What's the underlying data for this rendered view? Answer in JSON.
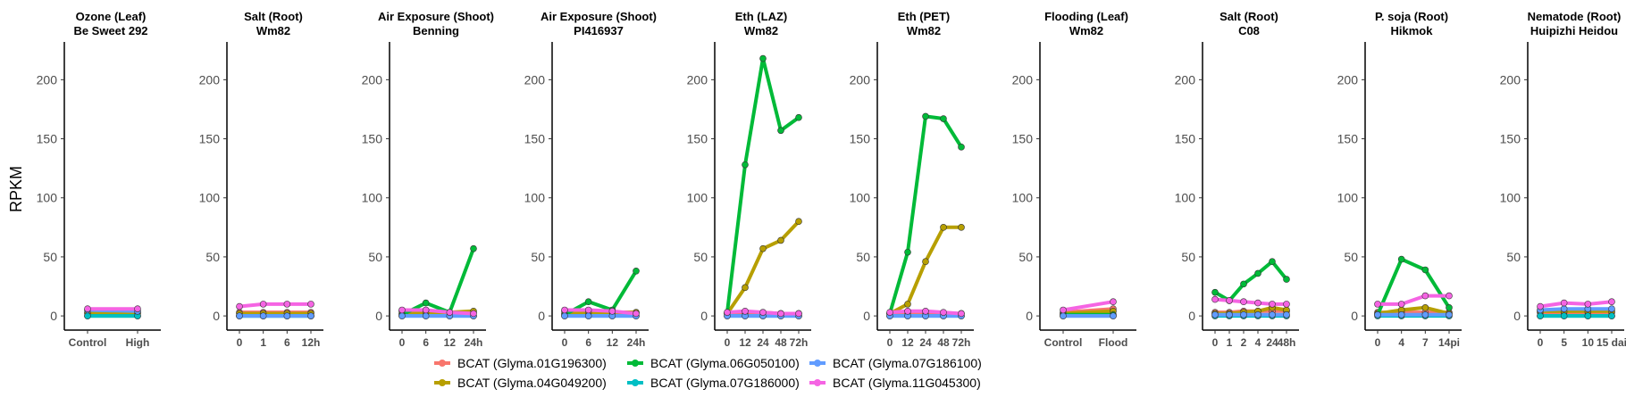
{
  "ylabel": "RPKM",
  "y_ticks": [
    "0",
    "50",
    "100",
    "150",
    "200"
  ],
  "colors": {
    "Glyma.01G196300": "#F8766D",
    "Glyma.04G049200": "#B79F00",
    "Glyma.06G050100": "#00BA38",
    "Glyma.07G186000": "#00BFC4",
    "Glyma.07G186100": "#619CFF",
    "Glyma.11G045300": "#F564E3"
  },
  "legend": [
    {
      "label": "BCAT (Glyma.01G196300)",
      "gene": "Glyma.01G196300"
    },
    {
      "label": "BCAT (Glyma.04G049200)",
      "gene": "Glyma.04G049200"
    },
    {
      "label": "BCAT (Glyma.06G050100)",
      "gene": "Glyma.06G050100"
    },
    {
      "label": "BCAT (Glyma.07G186000)",
      "gene": "Glyma.07G186000"
    },
    {
      "label": "BCAT (Glyma.07G186100)",
      "gene": "Glyma.07G186100"
    },
    {
      "label": "BCAT (Glyma.11G045300)",
      "gene": "Glyma.11G045300"
    }
  ],
  "chart_data": {
    "type": "line",
    "ylabel": "RPKM",
    "ylim": [
      -12,
      232
    ],
    "y_ticks": [
      0,
      50,
      100,
      150,
      200
    ],
    "grid": false,
    "legend_position": "bottom",
    "series_order": [
      "Glyma.01G196300",
      "Glyma.04G049200",
      "Glyma.06G050100",
      "Glyma.07G186000",
      "Glyma.07G186100",
      "Glyma.11G045300"
    ],
    "panels": [
      {
        "title1": "Ozone (Leaf)",
        "title2": "Be Sweet 292",
        "categories": [
          "Control",
          "High"
        ],
        "series": [
          {
            "gene": "Glyma.01G196300",
            "values": [
              3,
              3
            ]
          },
          {
            "gene": "Glyma.04G049200",
            "values": [
              2,
              2
            ]
          },
          {
            "gene": "Glyma.06G050100",
            "values": [
              0,
              0
            ]
          },
          {
            "gene": "Glyma.07G186000",
            "values": [
              0,
              0
            ]
          },
          {
            "gene": "Glyma.07G186100",
            "values": [
              5,
              4
            ]
          },
          {
            "gene": "Glyma.11G045300",
            "values": [
              6,
              6
            ]
          }
        ]
      },
      {
        "title1": "Salt (Root)",
        "title2": "Wm82",
        "categories": [
          "0",
          "1",
          "6",
          "12h"
        ],
        "series": [
          {
            "gene": "Glyma.01G196300",
            "values": [
              3,
              3,
              3,
              3
            ]
          },
          {
            "gene": "Glyma.04G049200",
            "values": [
              2,
              2,
              2,
              2
            ]
          },
          {
            "gene": "Glyma.06G050100",
            "values": [
              0,
              0,
              0,
              0
            ]
          },
          {
            "gene": "Glyma.07G186000",
            "values": [
              0,
              0,
              0,
              0
            ]
          },
          {
            "gene": "Glyma.07G186100",
            "values": [
              0,
              0,
              0,
              0
            ]
          },
          {
            "gene": "Glyma.11G045300",
            "values": [
              8,
              10,
              10,
              10
            ]
          }
        ]
      },
      {
        "title1": "Air Exposure (Shoot)",
        "title2": "Benning",
        "categories": [
          "0",
          "6",
          "12",
          "24h"
        ],
        "series": [
          {
            "gene": "Glyma.01G196300",
            "values": [
              4,
              4,
              3,
              3
            ]
          },
          {
            "gene": "Glyma.04G049200",
            "values": [
              2,
              3,
              3,
              4
            ]
          },
          {
            "gene": "Glyma.06G050100",
            "values": [
              1,
              11,
              3,
              57
            ]
          },
          {
            "gene": "Glyma.07G186000",
            "values": [
              0,
              0,
              0,
              0
            ]
          },
          {
            "gene": "Glyma.07G186100",
            "values": [
              0,
              0,
              0,
              0
            ]
          },
          {
            "gene": "Glyma.11G045300",
            "values": [
              5,
              5,
              3,
              2
            ]
          }
        ]
      },
      {
        "title1": "Air Exposure (Shoot)",
        "title2": "PI416937",
        "categories": [
          "0",
          "6",
          "12",
          "24h"
        ],
        "series": [
          {
            "gene": "Glyma.01G196300",
            "values": [
              4,
              4,
              3,
              3
            ]
          },
          {
            "gene": "Glyma.04G049200",
            "values": [
              2,
              3,
              3,
              3
            ]
          },
          {
            "gene": "Glyma.06G050100",
            "values": [
              1,
              12,
              5,
              38
            ]
          },
          {
            "gene": "Glyma.07G186000",
            "values": [
              0,
              0,
              0,
              0
            ]
          },
          {
            "gene": "Glyma.07G186100",
            "values": [
              0,
              0,
              0,
              0
            ]
          },
          {
            "gene": "Glyma.11G045300",
            "values": [
              5,
              5,
              4,
              2
            ]
          }
        ]
      },
      {
        "title1": "Eth (LAZ)",
        "title2": "Wm82",
        "categories": [
          "0",
          "12",
          "24",
          "48",
          "72h"
        ],
        "series": [
          {
            "gene": "Glyma.01G196300",
            "values": [
              2,
              3,
              3,
              2,
              2
            ]
          },
          {
            "gene": "Glyma.04G049200",
            "values": [
              2,
              24,
              57,
              64,
              80
            ]
          },
          {
            "gene": "Glyma.06G050100",
            "values": [
              3,
              128,
              218,
              157,
              168
            ]
          },
          {
            "gene": "Glyma.07G186000",
            "values": [
              0,
              0,
              0,
              0,
              0
            ]
          },
          {
            "gene": "Glyma.07G186100",
            "values": [
              0,
              0,
              0,
              0,
              0
            ]
          },
          {
            "gene": "Glyma.11G045300",
            "values": [
              3,
              4,
              3,
              2,
              2
            ]
          }
        ]
      },
      {
        "title1": "Eth (PET)",
        "title2": "Wm82",
        "categories": [
          "0",
          "12",
          "24",
          "48",
          "72h"
        ],
        "series": [
          {
            "gene": "Glyma.01G196300",
            "values": [
              2,
              3,
              3,
              2,
              2
            ]
          },
          {
            "gene": "Glyma.04G049200",
            "values": [
              2,
              10,
              46,
              75,
              75
            ]
          },
          {
            "gene": "Glyma.06G050100",
            "values": [
              2,
              54,
              169,
              167,
              143
            ]
          },
          {
            "gene": "Glyma.07G186000",
            "values": [
              0,
              0,
              0,
              0,
              0
            ]
          },
          {
            "gene": "Glyma.07G186100",
            "values": [
              0,
              0,
              0,
              0,
              0
            ]
          },
          {
            "gene": "Glyma.11G045300",
            "values": [
              3,
              4,
              4,
              3,
              2
            ]
          }
        ]
      },
      {
        "title1": "Flooding (Leaf)",
        "title2": "Wm82",
        "categories": [
          "Control",
          "Flood"
        ],
        "series": [
          {
            "gene": "Glyma.01G196300",
            "values": [
              3,
              6
            ]
          },
          {
            "gene": "Glyma.04G049200",
            "values": [
              2,
              4
            ]
          },
          {
            "gene": "Glyma.06G050100",
            "values": [
              1,
              1
            ]
          },
          {
            "gene": "Glyma.07G186000",
            "values": [
              0,
              0
            ]
          },
          {
            "gene": "Glyma.07G186100",
            "values": [
              0,
              0
            ]
          },
          {
            "gene": "Glyma.11G045300",
            "values": [
              5,
              12
            ]
          }
        ]
      },
      {
        "title1": "Salt (Root)",
        "title2": "C08",
        "categories": [
          "0",
          "1",
          "2",
          "4",
          "24",
          "48h"
        ],
        "series": [
          {
            "gene": "Glyma.01G196300",
            "values": [
              3,
              3,
              4,
              4,
              4,
              4
            ]
          },
          {
            "gene": "Glyma.04G049200",
            "values": [
              2,
              2,
              3,
              4,
              7,
              5
            ]
          },
          {
            "gene": "Glyma.06G050100",
            "values": [
              20,
              13,
              27,
              36,
              46,
              31
            ]
          },
          {
            "gene": "Glyma.07G186000",
            "values": [
              0,
              0,
              0,
              0,
              0,
              0
            ]
          },
          {
            "gene": "Glyma.07G186100",
            "values": [
              1,
              1,
              1,
              1,
              1,
              1
            ]
          },
          {
            "gene": "Glyma.11G045300",
            "values": [
              14,
              13,
              12,
              11,
              10,
              10
            ]
          }
        ]
      },
      {
        "title1": "P. soja (Root)",
        "title2": "Hikmok",
        "categories": [
          "0",
          "4",
          "7",
          "14pi"
        ],
        "series": [
          {
            "gene": "Glyma.01G196300",
            "values": [
              3,
              3,
              3,
              3
            ]
          },
          {
            "gene": "Glyma.04G049200",
            "values": [
              2,
              5,
              7,
              2
            ]
          },
          {
            "gene": "Glyma.06G050100",
            "values": [
              1,
              48,
              39,
              7
            ]
          },
          {
            "gene": "Glyma.07G186000",
            "values": [
              0,
              0,
              0,
              0
            ]
          },
          {
            "gene": "Glyma.07G186100",
            "values": [
              1,
              1,
              1,
              1
            ]
          },
          {
            "gene": "Glyma.11G045300",
            "values": [
              10,
              10,
              17,
              17
            ]
          }
        ]
      },
      {
        "title1": "Nematode (Root)",
        "title2": "Huipizhi Heidou",
        "categories": [
          "0",
          "5",
          "10",
          "15 dai"
        ],
        "series": [
          {
            "gene": "Glyma.01G196300",
            "values": [
              3,
              3,
              3,
              3
            ]
          },
          {
            "gene": "Glyma.04G049200",
            "values": [
              4,
              4,
              4,
              4
            ]
          },
          {
            "gene": "Glyma.06G050100",
            "values": [
              0,
              0,
              0,
              0
            ]
          },
          {
            "gene": "Glyma.07G186000",
            "values": [
              0,
              0,
              0,
              0
            ]
          },
          {
            "gene": "Glyma.07G186100",
            "values": [
              5,
              6,
              6,
              6
            ]
          },
          {
            "gene": "Glyma.11G045300",
            "values": [
              8,
              11,
              10,
              12
            ]
          }
        ]
      }
    ]
  }
}
